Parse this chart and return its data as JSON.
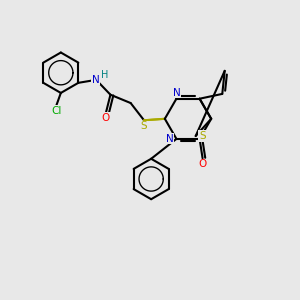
{
  "bg_color": "#e8e8e8",
  "bond_color": "#000000",
  "bond_lw": 1.5,
  "atom_colors": {
    "N": "#0000cc",
    "H": "#008080",
    "O": "#ff0000",
    "Cl": "#00aa00",
    "S": "#aaaa00"
  },
  "figsize": [
    3.0,
    3.0
  ],
  "dpi": 100,
  "xlim": [
    0,
    10
  ],
  "ylim": [
    0,
    10
  ]
}
